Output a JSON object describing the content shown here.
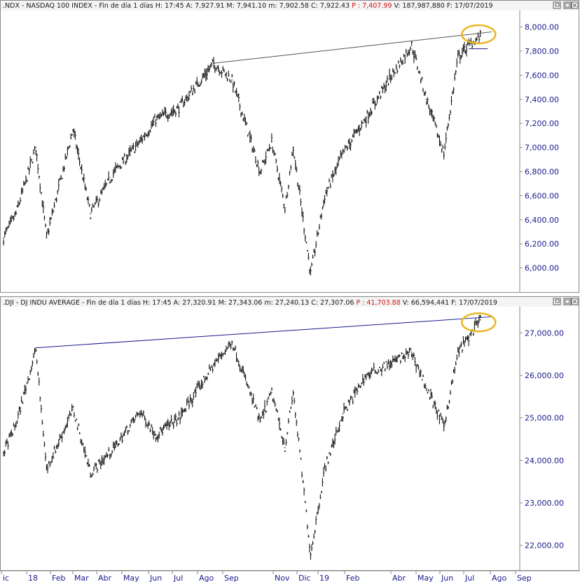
{
  "panels": [
    {
      "id": "ndx",
      "header": [
        {
          "t": ".NDX - NASDAQ 100 INDEX - Fin de día 1 días",
          "c": "#1a1a1a"
        },
        {
          "t": "H: 17:45",
          "c": "#1a1a1a"
        },
        {
          "t": "A: 7,927.91",
          "c": "#1a1a1a"
        },
        {
          "t": "M: 7,941.10",
          "c": "#1a1a1a"
        },
        {
          "t": "m: 7,902.58",
          "c": "#1a1a1a"
        },
        {
          "t": "C: 7,922.43",
          "c": "#1a1a1a"
        },
        {
          "t": "P : 7,407.99",
          "c": "#d01818"
        },
        {
          "t": "V: 187,987,880",
          "c": "#1a1a1a"
        },
        {
          "t": "F: 17/07/2019",
          "c": "#1a1a1a"
        }
      ],
      "ticks": [
        "8,000.00",
        "7,800.00",
        "7,600.00",
        "7,400.00",
        "7,200.00",
        "7,000.00",
        "6,800.00",
        "6,600.00",
        "6,400.00",
        "6,200.00",
        "6,000.00"
      ],
      "tick_values": [
        8000,
        7800,
        7600,
        7400,
        7200,
        7000,
        6800,
        6600,
        6400,
        6200,
        6000
      ],
      "ylim": [
        5870,
        8120
      ],
      "color": "#111111"
    },
    {
      "id": "dji",
      "header": [
        {
          "t": ".DJI - DJ INDU AVERAGE - Fin de día 1 días",
          "c": "#1a1a1a"
        },
        {
          "t": "H: 17:45",
          "c": "#1a1a1a"
        },
        {
          "t": "A: 27,320.91",
          "c": "#1a1a1a"
        },
        {
          "t": "M: 27,343.06",
          "c": "#1a1a1a"
        },
        {
          "t": "m: 27,240.13",
          "c": "#1a1a1a"
        },
        {
          "t": "C: 27,307.06",
          "c": "#1a1a1a"
        },
        {
          "t": "P : 41,703.88",
          "c": "#d01818"
        },
        {
          "t": "V: 66,594,441",
          "c": "#1a1a1a"
        },
        {
          "t": "F: 17/07/2019",
          "c": "#1a1a1a"
        }
      ],
      "ticks": [
        "27,000.00",
        "26,000.00",
        "25,000.00",
        "24,000.00",
        "23,000.00",
        "22,000.00"
      ],
      "tick_values": [
        27000,
        26000,
        25000,
        24000,
        23000,
        22000
      ],
      "ylim": [
        21550,
        27550
      ],
      "color": "#111111"
    }
  ],
  "x_axis": {
    "labels": [
      "ic",
      "18",
      "Feb",
      "Mar",
      "Abr",
      "May",
      "Jun",
      "Jul",
      "Ago",
      "Sep",
      "Nov",
      "Dic",
      "19",
      "Feb",
      "Abr",
      "May",
      "Jun",
      "Jul",
      "Ago",
      "Sep"
    ]
  },
  "chart_data": [
    {
      "type": "line",
      "title": ".NDX - NASDAQ 100 INDEX",
      "ylim": [
        5870,
        8120
      ],
      "x": [
        "2017-12-18",
        "2018-01-02",
        "2018-01-26",
        "2018-02-08",
        "2018-03-12",
        "2018-04-02",
        "2018-05-01",
        "2018-06-01",
        "2018-06-20",
        "2018-07-18",
        "2018-08-29",
        "2018-09-20",
        "2018-10-24",
        "2018-11-07",
        "2018-11-23",
        "2018-12-03",
        "2018-12-24",
        "2019-01-10",
        "2019-02-01",
        "2019-03-01",
        "2019-04-01",
        "2019-04-25",
        "2019-05-13",
        "2019-06-03",
        "2019-06-20",
        "2019-07-03",
        "2019-07-17"
      ],
      "series": [
        {
          "values": [
            6250,
            6450,
            7000,
            6250,
            7150,
            6450,
            6800,
            7050,
            7230,
            7330,
            7700,
            7560,
            6800,
            7050,
            6500,
            7000,
            5950,
            6600,
            6950,
            7250,
            7600,
            7850,
            7400,
            6950,
            7750,
            7850,
            7922
          ]
        }
      ],
      "trendlines": [
        {
          "color": "#555555",
          "points": [
            [
              "2018-08-29",
              7700
            ],
            [
              "2019-07-31",
              7960
            ]
          ]
        },
        {
          "color": "#1a1a8c",
          "points": [
            [
              "2019-07-03",
              7820
            ],
            [
              "2019-07-26",
              7820
            ]
          ]
        }
      ],
      "highlight": {
        "label_x": "2019-07-15",
        "label_y": 7940,
        "color": "#e8b825"
      }
    },
    {
      "type": "line",
      "title": ".DJI - DJ INDU AVERAGE",
      "ylim": [
        21550,
        27550
      ],
      "x": [
        "2017-12-18",
        "2018-01-02",
        "2018-01-26",
        "2018-02-08",
        "2018-03-12",
        "2018-04-02",
        "2018-05-01",
        "2018-06-01",
        "2018-06-20",
        "2018-07-18",
        "2018-08-29",
        "2018-09-20",
        "2018-10-24",
        "2018-11-07",
        "2018-11-23",
        "2018-12-03",
        "2018-12-24",
        "2019-01-10",
        "2019-02-01",
        "2019-03-01",
        "2019-04-01",
        "2019-04-25",
        "2019-05-13",
        "2019-06-03",
        "2019-06-20",
        "2019-07-03",
        "2019-07-17"
      ],
      "series": [
        {
          "values": [
            24200,
            24850,
            26600,
            23800,
            25200,
            23700,
            24300,
            25150,
            24600,
            25000,
            26250,
            26800,
            24900,
            25600,
            24300,
            25600,
            21800,
            23800,
            25100,
            26000,
            26300,
            26550,
            25700,
            24800,
            26550,
            26900,
            27307
          ]
        }
      ],
      "trendlines": [
        {
          "color": "#1a1a8c",
          "points": [
            [
              "2018-01-26",
              26650
            ],
            [
              "2019-07-31",
              27380
            ]
          ]
        }
      ],
      "highlight": {
        "label_x": "2019-07-15",
        "label_y": 27250,
        "color": "#e8b825"
      }
    }
  ]
}
